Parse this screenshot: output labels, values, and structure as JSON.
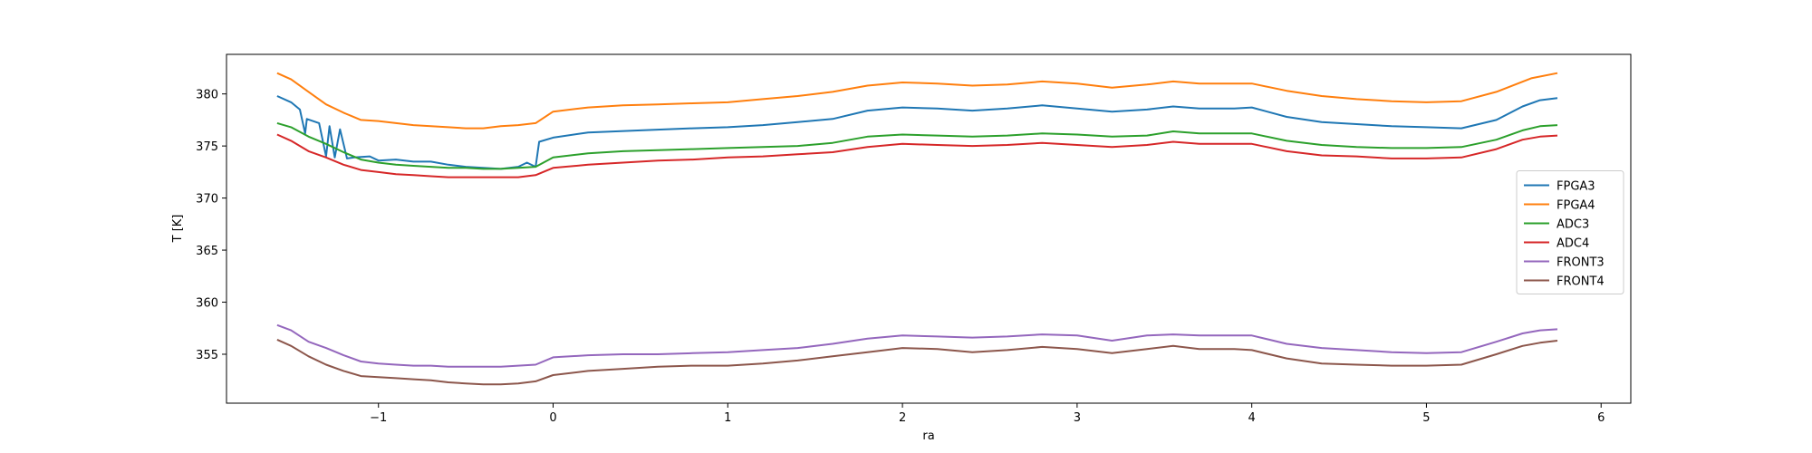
{
  "chart_data": {
    "type": "line",
    "title": "",
    "xlabel": "ra",
    "ylabel": "T [K]",
    "xlim": [
      -1.87,
      6.17
    ],
    "ylim": [
      350.3,
      383.8
    ],
    "xticks": [
      -1,
      0,
      1,
      2,
      3,
      4,
      5,
      6
    ],
    "yticks": [
      355,
      360,
      365,
      370,
      375,
      380
    ],
    "grid": false,
    "legend_position": "center-right",
    "series": [
      {
        "name": "FPGA3",
        "color": "#1f77b4",
        "points": [
          [
            -1.58,
            379.8
          ],
          [
            -1.5,
            379.2
          ],
          [
            -1.45,
            378.5
          ],
          [
            -1.42,
            376.2
          ],
          [
            -1.41,
            377.6
          ],
          [
            -1.34,
            377.2
          ],
          [
            -1.3,
            374.0
          ],
          [
            -1.28,
            376.9
          ],
          [
            -1.25,
            373.9
          ],
          [
            -1.22,
            376.6
          ],
          [
            -1.18,
            373.8
          ],
          [
            -1.14,
            373.9
          ],
          [
            -1.05,
            374.0
          ],
          [
            -1.0,
            373.6
          ],
          [
            -0.9,
            373.7
          ],
          [
            -0.8,
            373.5
          ],
          [
            -0.7,
            373.5
          ],
          [
            -0.6,
            373.2
          ],
          [
            -0.5,
            373.0
          ],
          [
            -0.4,
            372.9
          ],
          [
            -0.3,
            372.8
          ],
          [
            -0.2,
            373.0
          ],
          [
            -0.15,
            373.4
          ],
          [
            -0.1,
            373.0
          ],
          [
            -0.08,
            375.4
          ],
          [
            0.0,
            375.8
          ],
          [
            0.2,
            376.3
          ],
          [
            0.5,
            376.5
          ],
          [
            0.8,
            376.7
          ],
          [
            1.0,
            376.8
          ],
          [
            1.2,
            377.0
          ],
          [
            1.4,
            377.3
          ],
          [
            1.6,
            377.6
          ],
          [
            1.8,
            378.4
          ],
          [
            2.0,
            378.7
          ],
          [
            2.2,
            378.6
          ],
          [
            2.4,
            378.4
          ],
          [
            2.6,
            378.6
          ],
          [
            2.8,
            378.9
          ],
          [
            3.0,
            378.6
          ],
          [
            3.2,
            378.3
          ],
          [
            3.4,
            378.5
          ],
          [
            3.55,
            378.8
          ],
          [
            3.7,
            378.6
          ],
          [
            3.9,
            378.6
          ],
          [
            4.0,
            378.7
          ],
          [
            4.2,
            377.8
          ],
          [
            4.4,
            377.3
          ],
          [
            4.6,
            377.1
          ],
          [
            4.8,
            376.9
          ],
          [
            5.0,
            376.8
          ],
          [
            5.2,
            376.7
          ],
          [
            5.4,
            377.5
          ],
          [
            5.55,
            378.8
          ],
          [
            5.65,
            379.4
          ],
          [
            5.75,
            379.6
          ]
        ]
      },
      {
        "name": "FPGA4",
        "color": "#ff7f0e",
        "points": [
          [
            -1.58,
            382.0
          ],
          [
            -1.5,
            381.4
          ],
          [
            -1.4,
            380.2
          ],
          [
            -1.3,
            379.0
          ],
          [
            -1.2,
            378.2
          ],
          [
            -1.1,
            377.5
          ],
          [
            -1.0,
            377.4
          ],
          [
            -0.9,
            377.2
          ],
          [
            -0.8,
            377.0
          ],
          [
            -0.7,
            376.9
          ],
          [
            -0.6,
            376.8
          ],
          [
            -0.5,
            376.7
          ],
          [
            -0.4,
            376.7
          ],
          [
            -0.3,
            376.9
          ],
          [
            -0.2,
            377.0
          ],
          [
            -0.1,
            377.2
          ],
          [
            0.0,
            378.3
          ],
          [
            0.2,
            378.7
          ],
          [
            0.4,
            378.9
          ],
          [
            0.6,
            379.0
          ],
          [
            0.8,
            379.1
          ],
          [
            1.0,
            379.2
          ],
          [
            1.2,
            379.5
          ],
          [
            1.4,
            379.8
          ],
          [
            1.6,
            380.2
          ],
          [
            1.8,
            380.8
          ],
          [
            2.0,
            381.1
          ],
          [
            2.2,
            381.0
          ],
          [
            2.4,
            380.8
          ],
          [
            2.6,
            380.9
          ],
          [
            2.8,
            381.2
          ],
          [
            3.0,
            381.0
          ],
          [
            3.2,
            380.6
          ],
          [
            3.4,
            380.9
          ],
          [
            3.55,
            381.2
          ],
          [
            3.7,
            381.0
          ],
          [
            3.9,
            381.0
          ],
          [
            4.0,
            381.0
          ],
          [
            4.2,
            380.3
          ],
          [
            4.4,
            379.8
          ],
          [
            4.6,
            379.5
          ],
          [
            4.8,
            379.3
          ],
          [
            5.0,
            379.2
          ],
          [
            5.2,
            379.3
          ],
          [
            5.4,
            380.2
          ],
          [
            5.6,
            381.5
          ],
          [
            5.75,
            382.0
          ]
        ]
      },
      {
        "name": "ADC3",
        "color": "#2ca02c",
        "points": [
          [
            -1.58,
            377.2
          ],
          [
            -1.5,
            376.8
          ],
          [
            -1.4,
            375.9
          ],
          [
            -1.3,
            375.2
          ],
          [
            -1.2,
            374.4
          ],
          [
            -1.1,
            373.7
          ],
          [
            -1.0,
            373.4
          ],
          [
            -0.9,
            373.2
          ],
          [
            -0.8,
            373.1
          ],
          [
            -0.7,
            373.0
          ],
          [
            -0.6,
            372.9
          ],
          [
            -0.5,
            372.9
          ],
          [
            -0.4,
            372.8
          ],
          [
            -0.3,
            372.8
          ],
          [
            -0.2,
            372.9
          ],
          [
            -0.1,
            373.0
          ],
          [
            0.0,
            373.9
          ],
          [
            0.2,
            374.3
          ],
          [
            0.4,
            374.5
          ],
          [
            0.6,
            374.6
          ],
          [
            0.8,
            374.7
          ],
          [
            1.0,
            374.8
          ],
          [
            1.2,
            374.9
          ],
          [
            1.4,
            375.0
          ],
          [
            1.6,
            375.3
          ],
          [
            1.8,
            375.9
          ],
          [
            2.0,
            376.1
          ],
          [
            2.2,
            376.0
          ],
          [
            2.4,
            375.9
          ],
          [
            2.6,
            376.0
          ],
          [
            2.8,
            376.2
          ],
          [
            3.0,
            376.1
          ],
          [
            3.2,
            375.9
          ],
          [
            3.4,
            376.0
          ],
          [
            3.55,
            376.4
          ],
          [
            3.7,
            376.2
          ],
          [
            3.9,
            376.2
          ],
          [
            4.0,
            376.2
          ],
          [
            4.2,
            375.5
          ],
          [
            4.4,
            375.1
          ],
          [
            4.6,
            374.9
          ],
          [
            4.8,
            374.8
          ],
          [
            5.0,
            374.8
          ],
          [
            5.2,
            374.9
          ],
          [
            5.4,
            375.6
          ],
          [
            5.55,
            376.5
          ],
          [
            5.65,
            376.9
          ],
          [
            5.75,
            377.0
          ]
        ]
      },
      {
        "name": "ADC4",
        "color": "#d62728",
        "points": [
          [
            -1.58,
            376.1
          ],
          [
            -1.5,
            375.5
          ],
          [
            -1.4,
            374.5
          ],
          [
            -1.3,
            373.9
          ],
          [
            -1.2,
            373.2
          ],
          [
            -1.1,
            372.7
          ],
          [
            -1.0,
            372.5
          ],
          [
            -0.9,
            372.3
          ],
          [
            -0.8,
            372.2
          ],
          [
            -0.7,
            372.1
          ],
          [
            -0.6,
            372.0
          ],
          [
            -0.5,
            372.0
          ],
          [
            -0.4,
            372.0
          ],
          [
            -0.3,
            372.0
          ],
          [
            -0.2,
            372.0
          ],
          [
            -0.1,
            372.2
          ],
          [
            0.0,
            372.9
          ],
          [
            0.2,
            373.2
          ],
          [
            0.4,
            373.4
          ],
          [
            0.6,
            373.6
          ],
          [
            0.8,
            373.7
          ],
          [
            1.0,
            373.9
          ],
          [
            1.2,
            374.0
          ],
          [
            1.4,
            374.2
          ],
          [
            1.6,
            374.4
          ],
          [
            1.8,
            374.9
          ],
          [
            2.0,
            375.2
          ],
          [
            2.2,
            375.1
          ],
          [
            2.4,
            375.0
          ],
          [
            2.6,
            375.1
          ],
          [
            2.8,
            375.3
          ],
          [
            3.0,
            375.1
          ],
          [
            3.2,
            374.9
          ],
          [
            3.4,
            375.1
          ],
          [
            3.55,
            375.4
          ],
          [
            3.7,
            375.2
          ],
          [
            3.9,
            375.2
          ],
          [
            4.0,
            375.2
          ],
          [
            4.2,
            374.5
          ],
          [
            4.4,
            374.1
          ],
          [
            4.6,
            374.0
          ],
          [
            4.8,
            373.8
          ],
          [
            5.0,
            373.8
          ],
          [
            5.2,
            373.9
          ],
          [
            5.4,
            374.7
          ],
          [
            5.55,
            375.6
          ],
          [
            5.65,
            375.9
          ],
          [
            5.75,
            376.0
          ]
        ]
      },
      {
        "name": "FRONT3",
        "color": "#9467bd",
        "points": [
          [
            -1.58,
            357.8
          ],
          [
            -1.5,
            357.3
          ],
          [
            -1.4,
            356.2
          ],
          [
            -1.3,
            355.6
          ],
          [
            -1.2,
            354.9
          ],
          [
            -1.1,
            354.3
          ],
          [
            -1.0,
            354.1
          ],
          [
            -0.9,
            354.0
          ],
          [
            -0.8,
            353.9
          ],
          [
            -0.7,
            353.9
          ],
          [
            -0.6,
            353.8
          ],
          [
            -0.5,
            353.8
          ],
          [
            -0.4,
            353.8
          ],
          [
            -0.3,
            353.8
          ],
          [
            -0.2,
            353.9
          ],
          [
            -0.1,
            354.0
          ],
          [
            0.0,
            354.7
          ],
          [
            0.2,
            354.9
          ],
          [
            0.4,
            355.0
          ],
          [
            0.6,
            355.0
          ],
          [
            0.8,
            355.1
          ],
          [
            1.0,
            355.2
          ],
          [
            1.2,
            355.4
          ],
          [
            1.4,
            355.6
          ],
          [
            1.6,
            356.0
          ],
          [
            1.8,
            356.5
          ],
          [
            2.0,
            356.8
          ],
          [
            2.2,
            356.7
          ],
          [
            2.4,
            356.6
          ],
          [
            2.6,
            356.7
          ],
          [
            2.8,
            356.9
          ],
          [
            3.0,
            356.8
          ],
          [
            3.2,
            356.3
          ],
          [
            3.4,
            356.8
          ],
          [
            3.55,
            356.9
          ],
          [
            3.7,
            356.8
          ],
          [
            3.9,
            356.8
          ],
          [
            4.0,
            356.8
          ],
          [
            4.2,
            356.0
          ],
          [
            4.4,
            355.6
          ],
          [
            4.6,
            355.4
          ],
          [
            4.8,
            355.2
          ],
          [
            5.0,
            355.1
          ],
          [
            5.2,
            355.2
          ],
          [
            5.4,
            356.2
          ],
          [
            5.55,
            357.0
          ],
          [
            5.65,
            357.3
          ],
          [
            5.75,
            357.4
          ]
        ]
      },
      {
        "name": "FRONT4",
        "color": "#8c564b",
        "points": [
          [
            -1.58,
            356.4
          ],
          [
            -1.5,
            355.8
          ],
          [
            -1.4,
            354.8
          ],
          [
            -1.3,
            354.0
          ],
          [
            -1.2,
            353.4
          ],
          [
            -1.1,
            352.9
          ],
          [
            -1.0,
            352.8
          ],
          [
            -0.9,
            352.7
          ],
          [
            -0.8,
            352.6
          ],
          [
            -0.7,
            352.5
          ],
          [
            -0.6,
            352.3
          ],
          [
            -0.5,
            352.2
          ],
          [
            -0.4,
            352.1
          ],
          [
            -0.3,
            352.1
          ],
          [
            -0.2,
            352.2
          ],
          [
            -0.1,
            352.4
          ],
          [
            0.0,
            353.0
          ],
          [
            0.2,
            353.4
          ],
          [
            0.4,
            353.6
          ],
          [
            0.6,
            353.8
          ],
          [
            0.8,
            353.9
          ],
          [
            1.0,
            353.9
          ],
          [
            1.2,
            354.1
          ],
          [
            1.4,
            354.4
          ],
          [
            1.6,
            354.8
          ],
          [
            1.8,
            355.2
          ],
          [
            2.0,
            355.6
          ],
          [
            2.2,
            355.5
          ],
          [
            2.4,
            355.2
          ],
          [
            2.6,
            355.4
          ],
          [
            2.8,
            355.7
          ],
          [
            3.0,
            355.5
          ],
          [
            3.2,
            355.1
          ],
          [
            3.4,
            355.5
          ],
          [
            3.55,
            355.8
          ],
          [
            3.7,
            355.5
          ],
          [
            3.9,
            355.5
          ],
          [
            4.0,
            355.4
          ],
          [
            4.2,
            354.6
          ],
          [
            4.4,
            354.1
          ],
          [
            4.6,
            354.0
          ],
          [
            4.8,
            353.9
          ],
          [
            5.0,
            353.9
          ],
          [
            5.2,
            354.0
          ],
          [
            5.4,
            355.0
          ],
          [
            5.55,
            355.8
          ],
          [
            5.65,
            356.1
          ],
          [
            5.75,
            356.3
          ]
        ]
      }
    ]
  }
}
